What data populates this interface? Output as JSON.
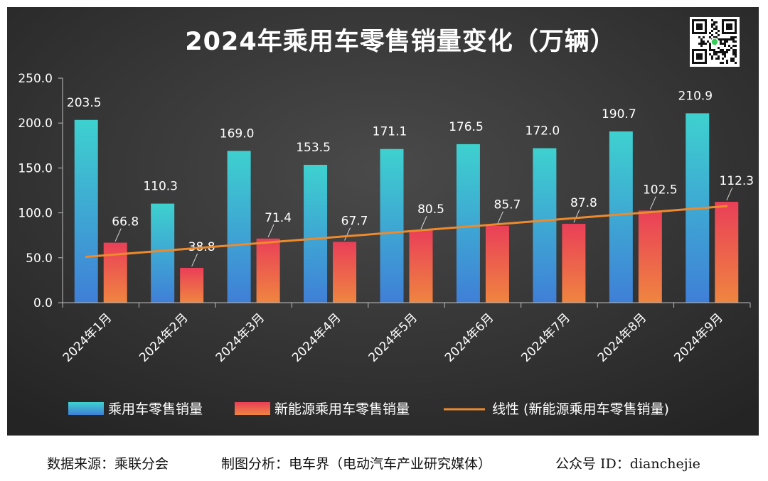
{
  "chart_data": {
    "type": "bar",
    "title": "2024年乘用车零售销量变化（万辆）",
    "categories": [
      "2024年1月",
      "2024年2月",
      "2024年3月",
      "2024年4月",
      "2024年5月",
      "2024年6月",
      "2024年7月",
      "2024年8月",
      "2024年9月"
    ],
    "series": [
      {
        "name": "乘用车零售销量",
        "values": [
          203.5,
          110.3,
          169.0,
          153.5,
          171.1,
          176.5,
          172.0,
          190.7,
          210.9
        ],
        "color_top": "#3ed1cf",
        "color_bottom": "#3f7fd7"
      },
      {
        "name": "新能源乘用车零售销量",
        "values": [
          66.8,
          38.8,
          71.4,
          67.7,
          80.5,
          85.7,
          87.8,
          102.5,
          112.3
        ],
        "color_top": "#ea3f58",
        "color_bottom": "#ef8540"
      }
    ],
    "trendline": {
      "name": "线性 (新能源乘用车零售销量)",
      "type": "linear",
      "of_series": "新能源乘用车零售销量",
      "color": "#ef8a2c"
    },
    "yticks": [
      "0.0",
      "50.0",
      "100.0",
      "150.0",
      "200.0",
      "250.0"
    ],
    "ylim": [
      0,
      250
    ],
    "xlabel": "",
    "ylabel": "",
    "grid": false,
    "legend_position": "bottom",
    "background": "#3b3b3b",
    "text_color": "#ffffff"
  },
  "footer": {
    "source": "数据来源：乘联分会",
    "credit": "制图分析：电车界（电动汽车产业研究媒体）",
    "account": "公众号 ID：dianchejie"
  }
}
